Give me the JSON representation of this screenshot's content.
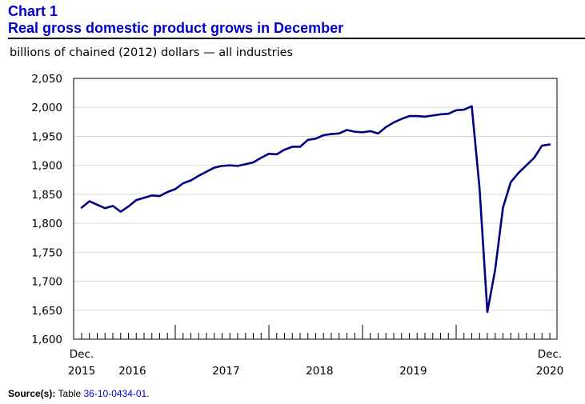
{
  "header": {
    "chart_number": "Chart 1",
    "title": "Real gross domestic product grows in December"
  },
  "source": {
    "label": "Source(s):",
    "prefix": "Table",
    "table_id": "36-10-0434-01",
    "suffix": "."
  },
  "colors": {
    "title": "#0000cc",
    "line": "#000080",
    "link": "#0000cc"
  },
  "chart_data": {
    "type": "line",
    "unit_label": "billions of chained (2012) dollars — all industries",
    "ylim": [
      1600,
      2050
    ],
    "yticks": [
      "1,600",
      "1,650",
      "1,700",
      "1,750",
      "1,800",
      "1,850",
      "1,900",
      "1,950",
      "2,000",
      "2,050"
    ],
    "ytick_values": [
      1600,
      1650,
      1700,
      1750,
      1800,
      1850,
      1900,
      1950,
      2000,
      2050
    ],
    "x_start_month": "2015-12",
    "x_end_month": "2020-12",
    "x_labels": [
      {
        "top": "Dec.",
        "bottom": "2015",
        "month_index": 0,
        "align": "edge"
      },
      {
        "top": "",
        "bottom": "2016",
        "month_index": 6.5,
        "align": "center"
      },
      {
        "top": "",
        "bottom": "2017",
        "month_index": 18.5,
        "align": "center"
      },
      {
        "top": "",
        "bottom": "2018",
        "month_index": 30.5,
        "align": "center"
      },
      {
        "top": "",
        "bottom": "2019",
        "month_index": 42.5,
        "align": "center"
      },
      {
        "top": "Dec.",
        "bottom": "2020",
        "month_index": 60,
        "align": "edge"
      }
    ],
    "series": [
      {
        "name": "Real GDP, all industries",
        "values": [
          1827,
          1838,
          1832,
          1826,
          1830,
          1820,
          1829,
          1840,
          1844,
          1848,
          1847,
          1854,
          1859,
          1869,
          1874,
          1882,
          1889,
          1896,
          1899,
          1900,
          1899,
          1902,
          1905,
          1913,
          1920,
          1919,
          1927,
          1932,
          1932,
          1944,
          1946,
          1952,
          1954,
          1955,
          1961,
          1958,
          1957,
          1959,
          1955,
          1966,
          1974,
          1980,
          1985,
          1985,
          1984,
          1986,
          1988,
          1989,
          1995,
          1996,
          2002,
          1860,
          1647,
          1720,
          1827,
          1871,
          1887,
          1900,
          1913,
          1934,
          1936
        ]
      }
    ]
  }
}
